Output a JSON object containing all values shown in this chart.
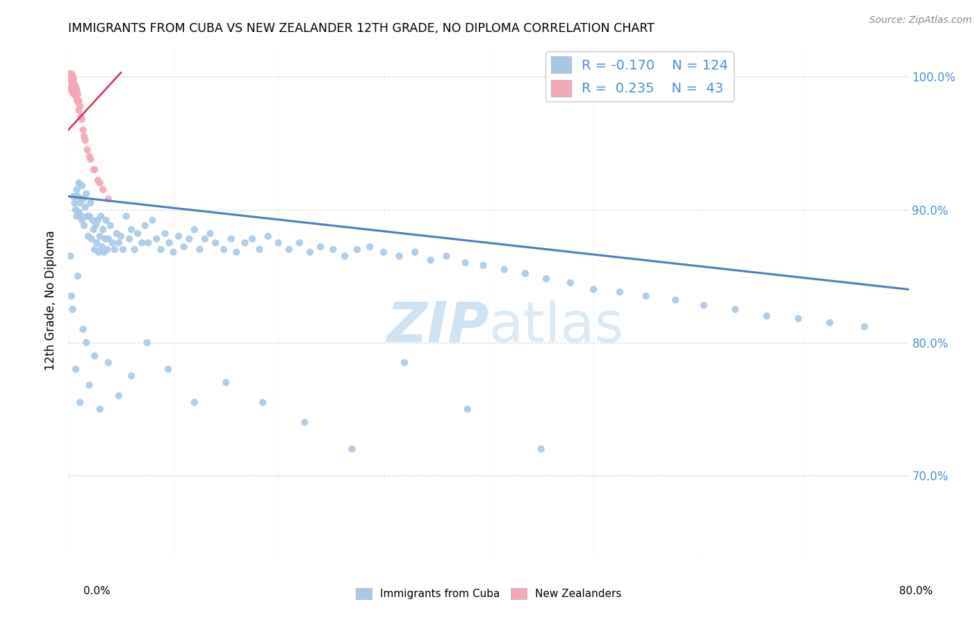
{
  "title": "IMMIGRANTS FROM CUBA VS NEW ZEALANDER 12TH GRADE, NO DIPLOMA CORRELATION CHART",
  "source": "Source: ZipAtlas.com",
  "ylabel": "12th Grade, No Diploma",
  "legend_blue_R": "-0.170",
  "legend_blue_N": "124",
  "legend_pink_R": "0.235",
  "legend_pink_N": "43",
  "blue_color": "#a8c8e8",
  "pink_color": "#f4a8b8",
  "trendline_blue_color": "#4a7fc0",
  "trendline_pink_color": "#d04060",
  "watermark_color": "#c8dff0",
  "xlim": [
    0.0,
    0.8
  ],
  "ylim": [
    0.638,
    1.025
  ],
  "yticks": [
    0.7,
    0.8,
    0.9,
    1.0
  ],
  "xticks": [
    0.0,
    0.1,
    0.2,
    0.3,
    0.4,
    0.5,
    0.6,
    0.7,
    0.8
  ],
  "blue_trendline_x": [
    0.0,
    0.8
  ],
  "blue_trendline_y": [
    0.91,
    0.84
  ],
  "pink_trendline_x": [
    0.0,
    0.05
  ],
  "pink_trendline_y": [
    0.96,
    1.003
  ],
  "blue_x": [
    0.005,
    0.006,
    0.007,
    0.008,
    0.008,
    0.009,
    0.01,
    0.01,
    0.011,
    0.012,
    0.013,
    0.013,
    0.014,
    0.015,
    0.016,
    0.017,
    0.018,
    0.019,
    0.02,
    0.021,
    0.022,
    0.023,
    0.024,
    0.025,
    0.026,
    0.027,
    0.028,
    0.029,
    0.03,
    0.031,
    0.032,
    0.033,
    0.034,
    0.035,
    0.036,
    0.037,
    0.038,
    0.04,
    0.042,
    0.044,
    0.046,
    0.048,
    0.05,
    0.052,
    0.055,
    0.058,
    0.06,
    0.063,
    0.066,
    0.07,
    0.073,
    0.076,
    0.08,
    0.084,
    0.088,
    0.092,
    0.096,
    0.1,
    0.105,
    0.11,
    0.115,
    0.12,
    0.125,
    0.13,
    0.135,
    0.14,
    0.148,
    0.155,
    0.16,
    0.168,
    0.175,
    0.182,
    0.19,
    0.2,
    0.21,
    0.22,
    0.23,
    0.24,
    0.252,
    0.263,
    0.275,
    0.287,
    0.3,
    0.315,
    0.33,
    0.345,
    0.36,
    0.378,
    0.395,
    0.415,
    0.435,
    0.455,
    0.478,
    0.5,
    0.525,
    0.55,
    0.578,
    0.605,
    0.635,
    0.665,
    0.695,
    0.725,
    0.758,
    0.002,
    0.003,
    0.004,
    0.007,
    0.009,
    0.011,
    0.014,
    0.017,
    0.02,
    0.025,
    0.03,
    0.038,
    0.048,
    0.06,
    0.075,
    0.095,
    0.12,
    0.15,
    0.185,
    0.225,
    0.27,
    0.32,
    0.38,
    0.45
  ],
  "blue_y": [
    0.91,
    0.905,
    0.9,
    0.915,
    0.895,
    0.91,
    0.898,
    0.92,
    0.905,
    0.895,
    0.918,
    0.892,
    0.908,
    0.888,
    0.902,
    0.912,
    0.895,
    0.88,
    0.895,
    0.905,
    0.878,
    0.892,
    0.885,
    0.87,
    0.888,
    0.875,
    0.892,
    0.868,
    0.88,
    0.895,
    0.872,
    0.885,
    0.868,
    0.878,
    0.892,
    0.87,
    0.878,
    0.888,
    0.875,
    0.87,
    0.882,
    0.875,
    0.88,
    0.87,
    0.895,
    0.878,
    0.885,
    0.87,
    0.882,
    0.875,
    0.888,
    0.875,
    0.892,
    0.878,
    0.87,
    0.882,
    0.875,
    0.868,
    0.88,
    0.872,
    0.878,
    0.885,
    0.87,
    0.878,
    0.882,
    0.875,
    0.87,
    0.878,
    0.868,
    0.875,
    0.878,
    0.87,
    0.88,
    0.875,
    0.87,
    0.875,
    0.868,
    0.872,
    0.87,
    0.865,
    0.87,
    0.872,
    0.868,
    0.865,
    0.868,
    0.862,
    0.865,
    0.86,
    0.858,
    0.855,
    0.852,
    0.848,
    0.845,
    0.84,
    0.838,
    0.835,
    0.832,
    0.828,
    0.825,
    0.82,
    0.818,
    0.815,
    0.812,
    0.865,
    0.835,
    0.825,
    0.78,
    0.85,
    0.755,
    0.81,
    0.8,
    0.768,
    0.79,
    0.75,
    0.785,
    0.76,
    0.775,
    0.8,
    0.78,
    0.755,
    0.77,
    0.755,
    0.74,
    0.72,
    0.785,
    0.75,
    0.72
  ],
  "pink_x": [
    0.001,
    0.001,
    0.001,
    0.002,
    0.002,
    0.002,
    0.003,
    0.003,
    0.003,
    0.003,
    0.003,
    0.004,
    0.004,
    0.004,
    0.004,
    0.005,
    0.005,
    0.005,
    0.006,
    0.006,
    0.007,
    0.007,
    0.008,
    0.008,
    0.009,
    0.009,
    0.01,
    0.01,
    0.011,
    0.012,
    0.013,
    0.014,
    0.016,
    0.018,
    0.021,
    0.024,
    0.028,
    0.033,
    0.038,
    0.02,
    0.015,
    0.03,
    0.025
  ],
  "pink_y": [
    1.002,
    0.998,
    1.0,
    1.002,
    0.998,
    1.0,
    1.002,
    0.998,
    0.996,
    0.992,
    0.99,
    1.001,
    0.997,
    0.993,
    0.988,
    0.998,
    0.993,
    0.987,
    0.994,
    0.988,
    0.992,
    0.986,
    0.99,
    0.983,
    0.987,
    0.981,
    0.982,
    0.975,
    0.978,
    0.97,
    0.968,
    0.96,
    0.952,
    0.945,
    0.938,
    0.93,
    0.922,
    0.915,
    0.908,
    0.94,
    0.955,
    0.92,
    0.93
  ]
}
